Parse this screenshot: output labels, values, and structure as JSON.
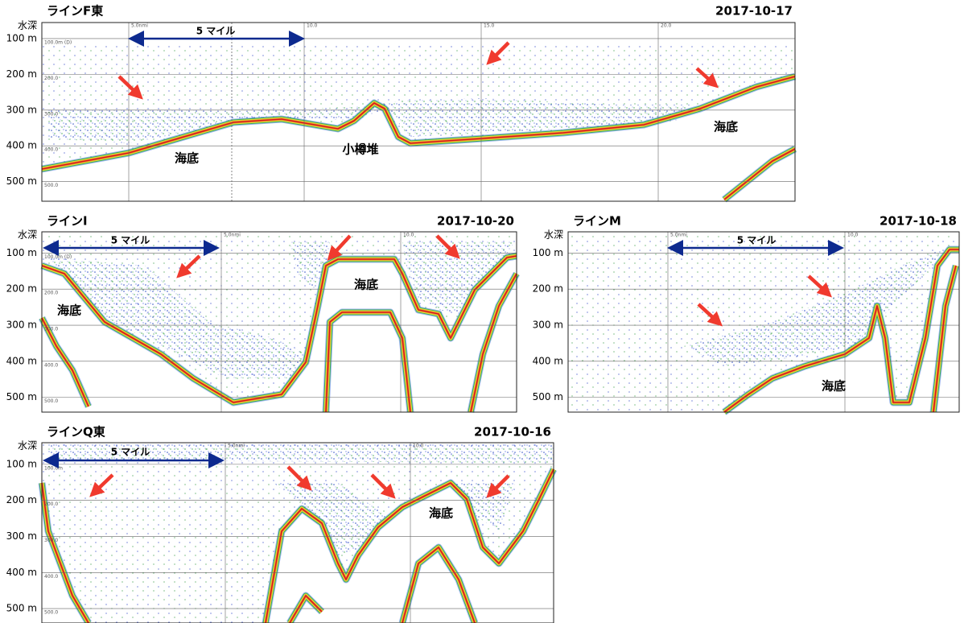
{
  "panels": [
    {
      "title": "ラインF東",
      "date": "2017-10-17",
      "depth_label": "水深",
      "ylim": [
        55,
        555
      ],
      "yticks": [
        {
          "value": 100,
          "label": "100 m"
        },
        {
          "value": 200,
          "label": "200 m"
        },
        {
          "value": 300,
          "label": "300 m"
        },
        {
          "value": 400,
          "label": "400 m"
        },
        {
          "value": 500,
          "label": "500 m"
        }
      ],
      "scale_label": "5 マイル",
      "annotations": [
        "海底",
        "小樽堆",
        "海底"
      ],
      "distance_marks": [
        "5.0nmi",
        "10.0",
        "15.0",
        "20.0"
      ],
      "depth_marks": [
        "100.0m (D)",
        "200.0",
        "300.0",
        "400.0",
        "500.0"
      ]
    },
    {
      "title": "ラインI",
      "date": "2017-10-20",
      "depth_label": "水深",
      "ylim": [
        41,
        541
      ],
      "yticks": [
        {
          "value": 100,
          "label": "100 m"
        },
        {
          "value": 200,
          "label": "200 m"
        },
        {
          "value": 300,
          "label": "300 m"
        },
        {
          "value": 400,
          "label": "400 m"
        },
        {
          "value": 500,
          "label": "500 m"
        }
      ],
      "scale_label": "5 マイル",
      "annotations": [
        "海底",
        "海底"
      ],
      "distance_marks": [
        "5.0nmi",
        "10.0"
      ],
      "depth_marks": [
        "100.0m (D)",
        "200.0",
        "300.0",
        "400.0",
        "500.0"
      ]
    },
    {
      "title": "ラインM",
      "date": "2017-10-18",
      "depth_label": "水深",
      "ylim": [
        41,
        541
      ],
      "yticks": [
        {
          "value": 100,
          "label": "100 m"
        },
        {
          "value": 200,
          "label": "200 m"
        },
        {
          "value": 300,
          "label": "300 m"
        },
        {
          "value": 400,
          "label": "400 m"
        },
        {
          "value": 500,
          "label": "500 m"
        }
      ],
      "scale_label": "5 マイル",
      "annotations": [
        "海底"
      ],
      "distance_marks": [
        "5.0nmi",
        "10.0"
      ]
    },
    {
      "title": "ラインQ東",
      "date": "2017-10-16",
      "depth_label": "水深",
      "ylim": [
        40,
        540
      ],
      "yticks": [
        {
          "value": 100,
          "label": "100 m"
        },
        {
          "value": 200,
          "label": "200 m"
        },
        {
          "value": 300,
          "label": "300 m"
        },
        {
          "value": 400,
          "label": "400 m"
        },
        {
          "value": 500,
          "label": "500 m"
        }
      ],
      "scale_label": "5 マイル",
      "annotations": [
        "海底"
      ],
      "distance_marks": [
        "5.0nmi",
        "10.0"
      ],
      "depth_marks": [
        "100.0m",
        "200.0",
        "300.0",
        "400.0",
        "500.0"
      ]
    }
  ]
}
